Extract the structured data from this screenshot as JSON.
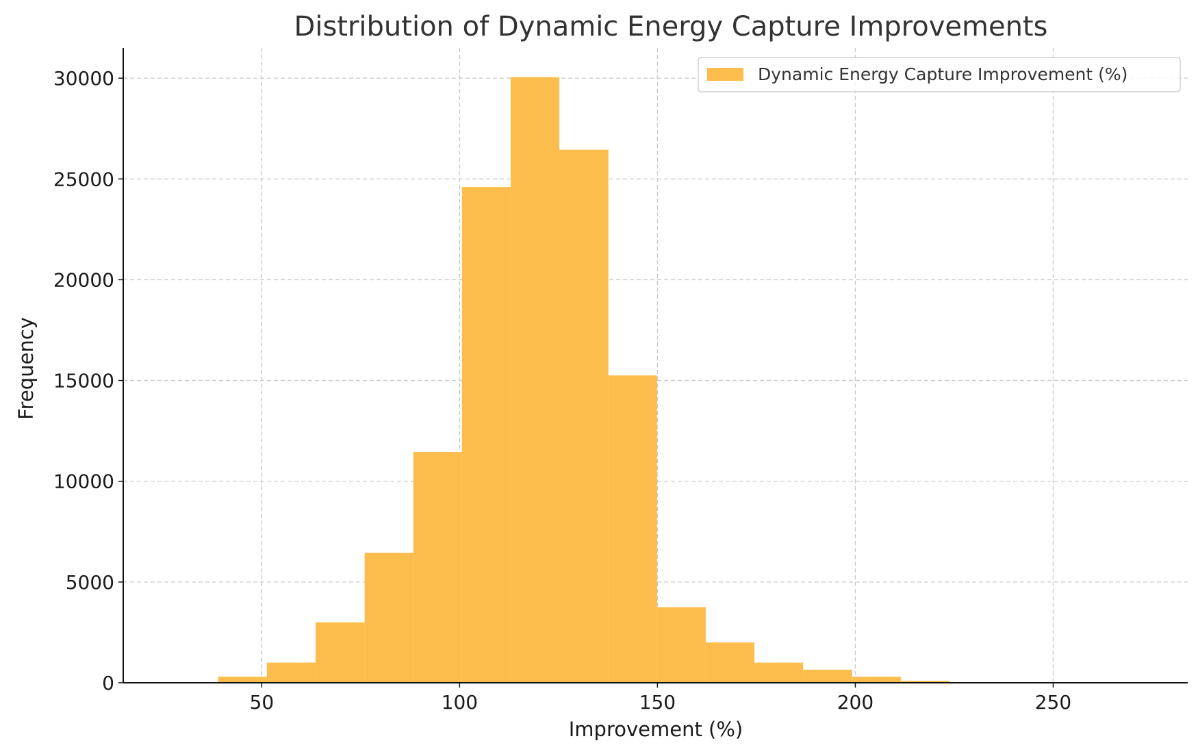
{
  "chart_data": {
    "type": "bar",
    "title": "Distribution of Dynamic Energy Capture Improvements",
    "xlabel": "Improvement (%)",
    "ylabel": "Frequency",
    "xlim": [
      15,
      284
    ],
    "ylim": [
      0,
      31500
    ],
    "xticks": [
      50,
      100,
      150,
      200,
      250
    ],
    "yticks": [
      0,
      5000,
      10000,
      15000,
      20000,
      25000,
      30000
    ],
    "grid": true,
    "legend_position": "top-right",
    "bar_color": "#fcbd4d",
    "series": [
      {
        "name": "Dynamic Energy Capture Improvement (%)",
        "bins": [
          {
            "x0": 39.0,
            "x1": 51.3,
            "value": 300
          },
          {
            "x0": 51.3,
            "x1": 63.6,
            "value": 1000
          },
          {
            "x0": 63.6,
            "x1": 76.0,
            "value": 3000
          },
          {
            "x0": 76.0,
            "x1": 88.3,
            "value": 6450
          },
          {
            "x0": 88.3,
            "x1": 100.6,
            "value": 11450
          },
          {
            "x0": 100.6,
            "x1": 112.9,
            "value": 24600
          },
          {
            "x0": 112.9,
            "x1": 125.2,
            "value": 30050
          },
          {
            "x0": 125.2,
            "x1": 137.6,
            "value": 26450
          },
          {
            "x0": 137.6,
            "x1": 149.9,
            "value": 15250
          },
          {
            "x0": 149.9,
            "x1": 162.2,
            "value": 3750
          },
          {
            "x0": 162.2,
            "x1": 174.5,
            "value": 2000
          },
          {
            "x0": 174.5,
            "x1": 186.8,
            "value": 1000
          },
          {
            "x0": 186.8,
            "x1": 199.2,
            "value": 650
          },
          {
            "x0": 199.2,
            "x1": 211.5,
            "value": 300
          },
          {
            "x0": 211.5,
            "x1": 223.8,
            "value": 100
          },
          {
            "x0": 223.8,
            "x1": 236.1,
            "value": 25
          },
          {
            "x0": 236.1,
            "x1": 248.4,
            "value": 8
          },
          {
            "x0": 248.4,
            "x1": 260.7,
            "value": 3
          },
          {
            "x0": 260.7,
            "x1": 273.1,
            "value": 1
          }
        ]
      }
    ]
  }
}
